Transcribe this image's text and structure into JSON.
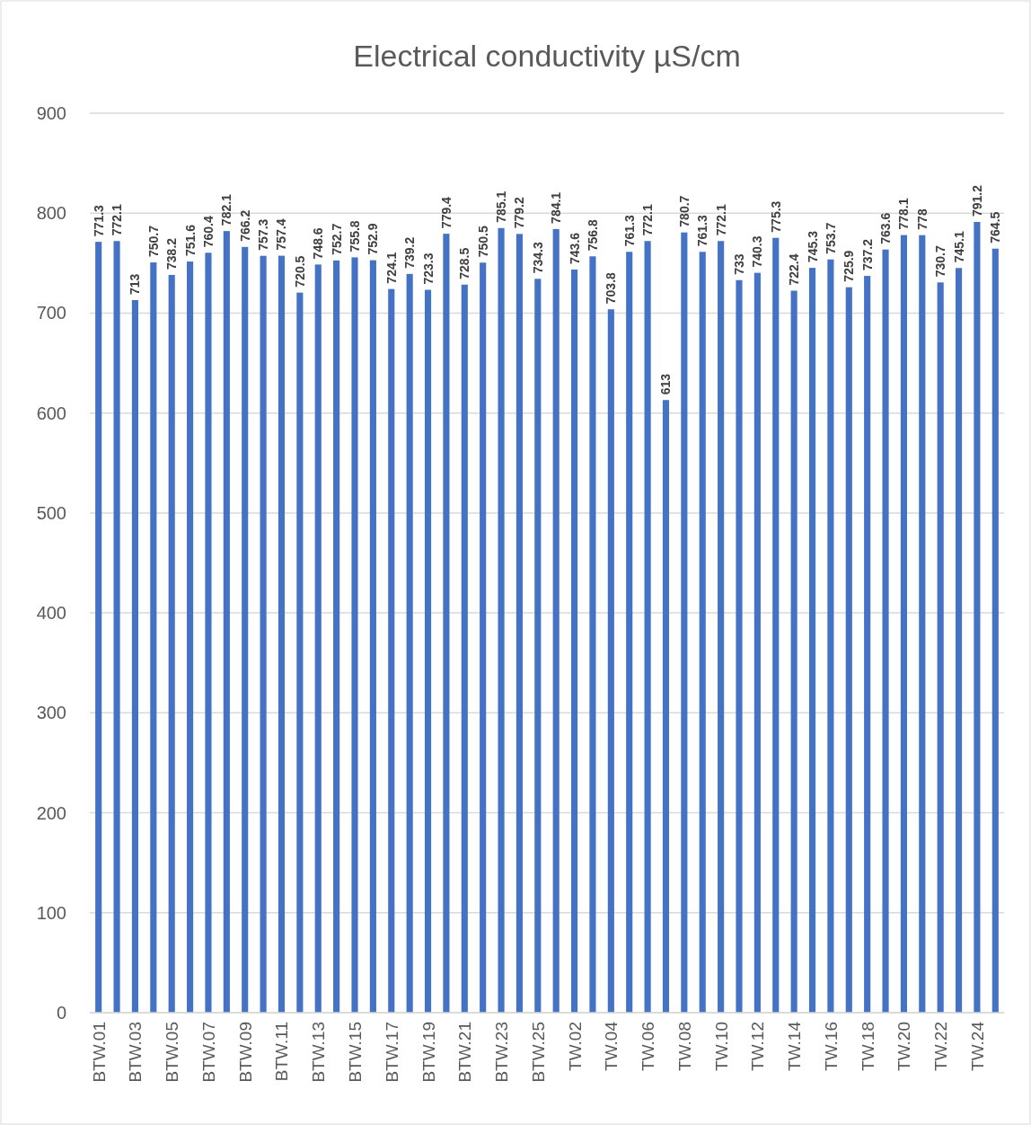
{
  "chart_data": {
    "type": "bar",
    "title": "Electrical conductivity µS/cm",
    "categories": [
      "BTW.01",
      null,
      "BTW.03",
      null,
      "BTW.05",
      null,
      "BTW.07",
      null,
      "BTW.09",
      null,
      "BTW.11",
      null,
      "BTW.13",
      null,
      "BTW.15",
      null,
      "BTW.17",
      null,
      "BTW.19",
      null,
      "BTW.21",
      null,
      "BTW.23",
      null,
      "BTW.25",
      null,
      "TW.02",
      null,
      "TW.04",
      null,
      "TW.06",
      null,
      "TW.08",
      null,
      "TW.10",
      null,
      "TW.12",
      null,
      "TW.14",
      null,
      "TW.16",
      null,
      "TW.18",
      null,
      "TW.20",
      null,
      "TW.22",
      null,
      "TW.24",
      null
    ],
    "values": [
      771.3,
      772.1,
      713,
      750.7,
      738.2,
      751.6,
      760.4,
      782.1,
      766.2,
      757.3,
      757.4,
      720.5,
      748.6,
      752.7,
      755.8,
      752.9,
      724.1,
      739.2,
      723.3,
      779.4,
      728.5,
      750.5,
      785.1,
      779.2,
      734.3,
      784.1,
      743.6,
      756.8,
      703.8,
      761.3,
      772.1,
      613,
      780.7,
      761.3,
      772.1,
      733,
      740.3,
      775.3,
      722.4,
      745.3,
      753.7,
      725.9,
      737.2,
      763.6,
      778.1,
      778,
      730.7,
      745.1,
      791.2,
      764.5
    ],
    "color": "#4472c4",
    "ylim": [
      0,
      900
    ],
    "yticks": [
      0,
      100,
      200,
      300,
      400,
      500,
      600,
      700,
      800,
      900
    ],
    "grid": "y",
    "data_labels": true
  }
}
